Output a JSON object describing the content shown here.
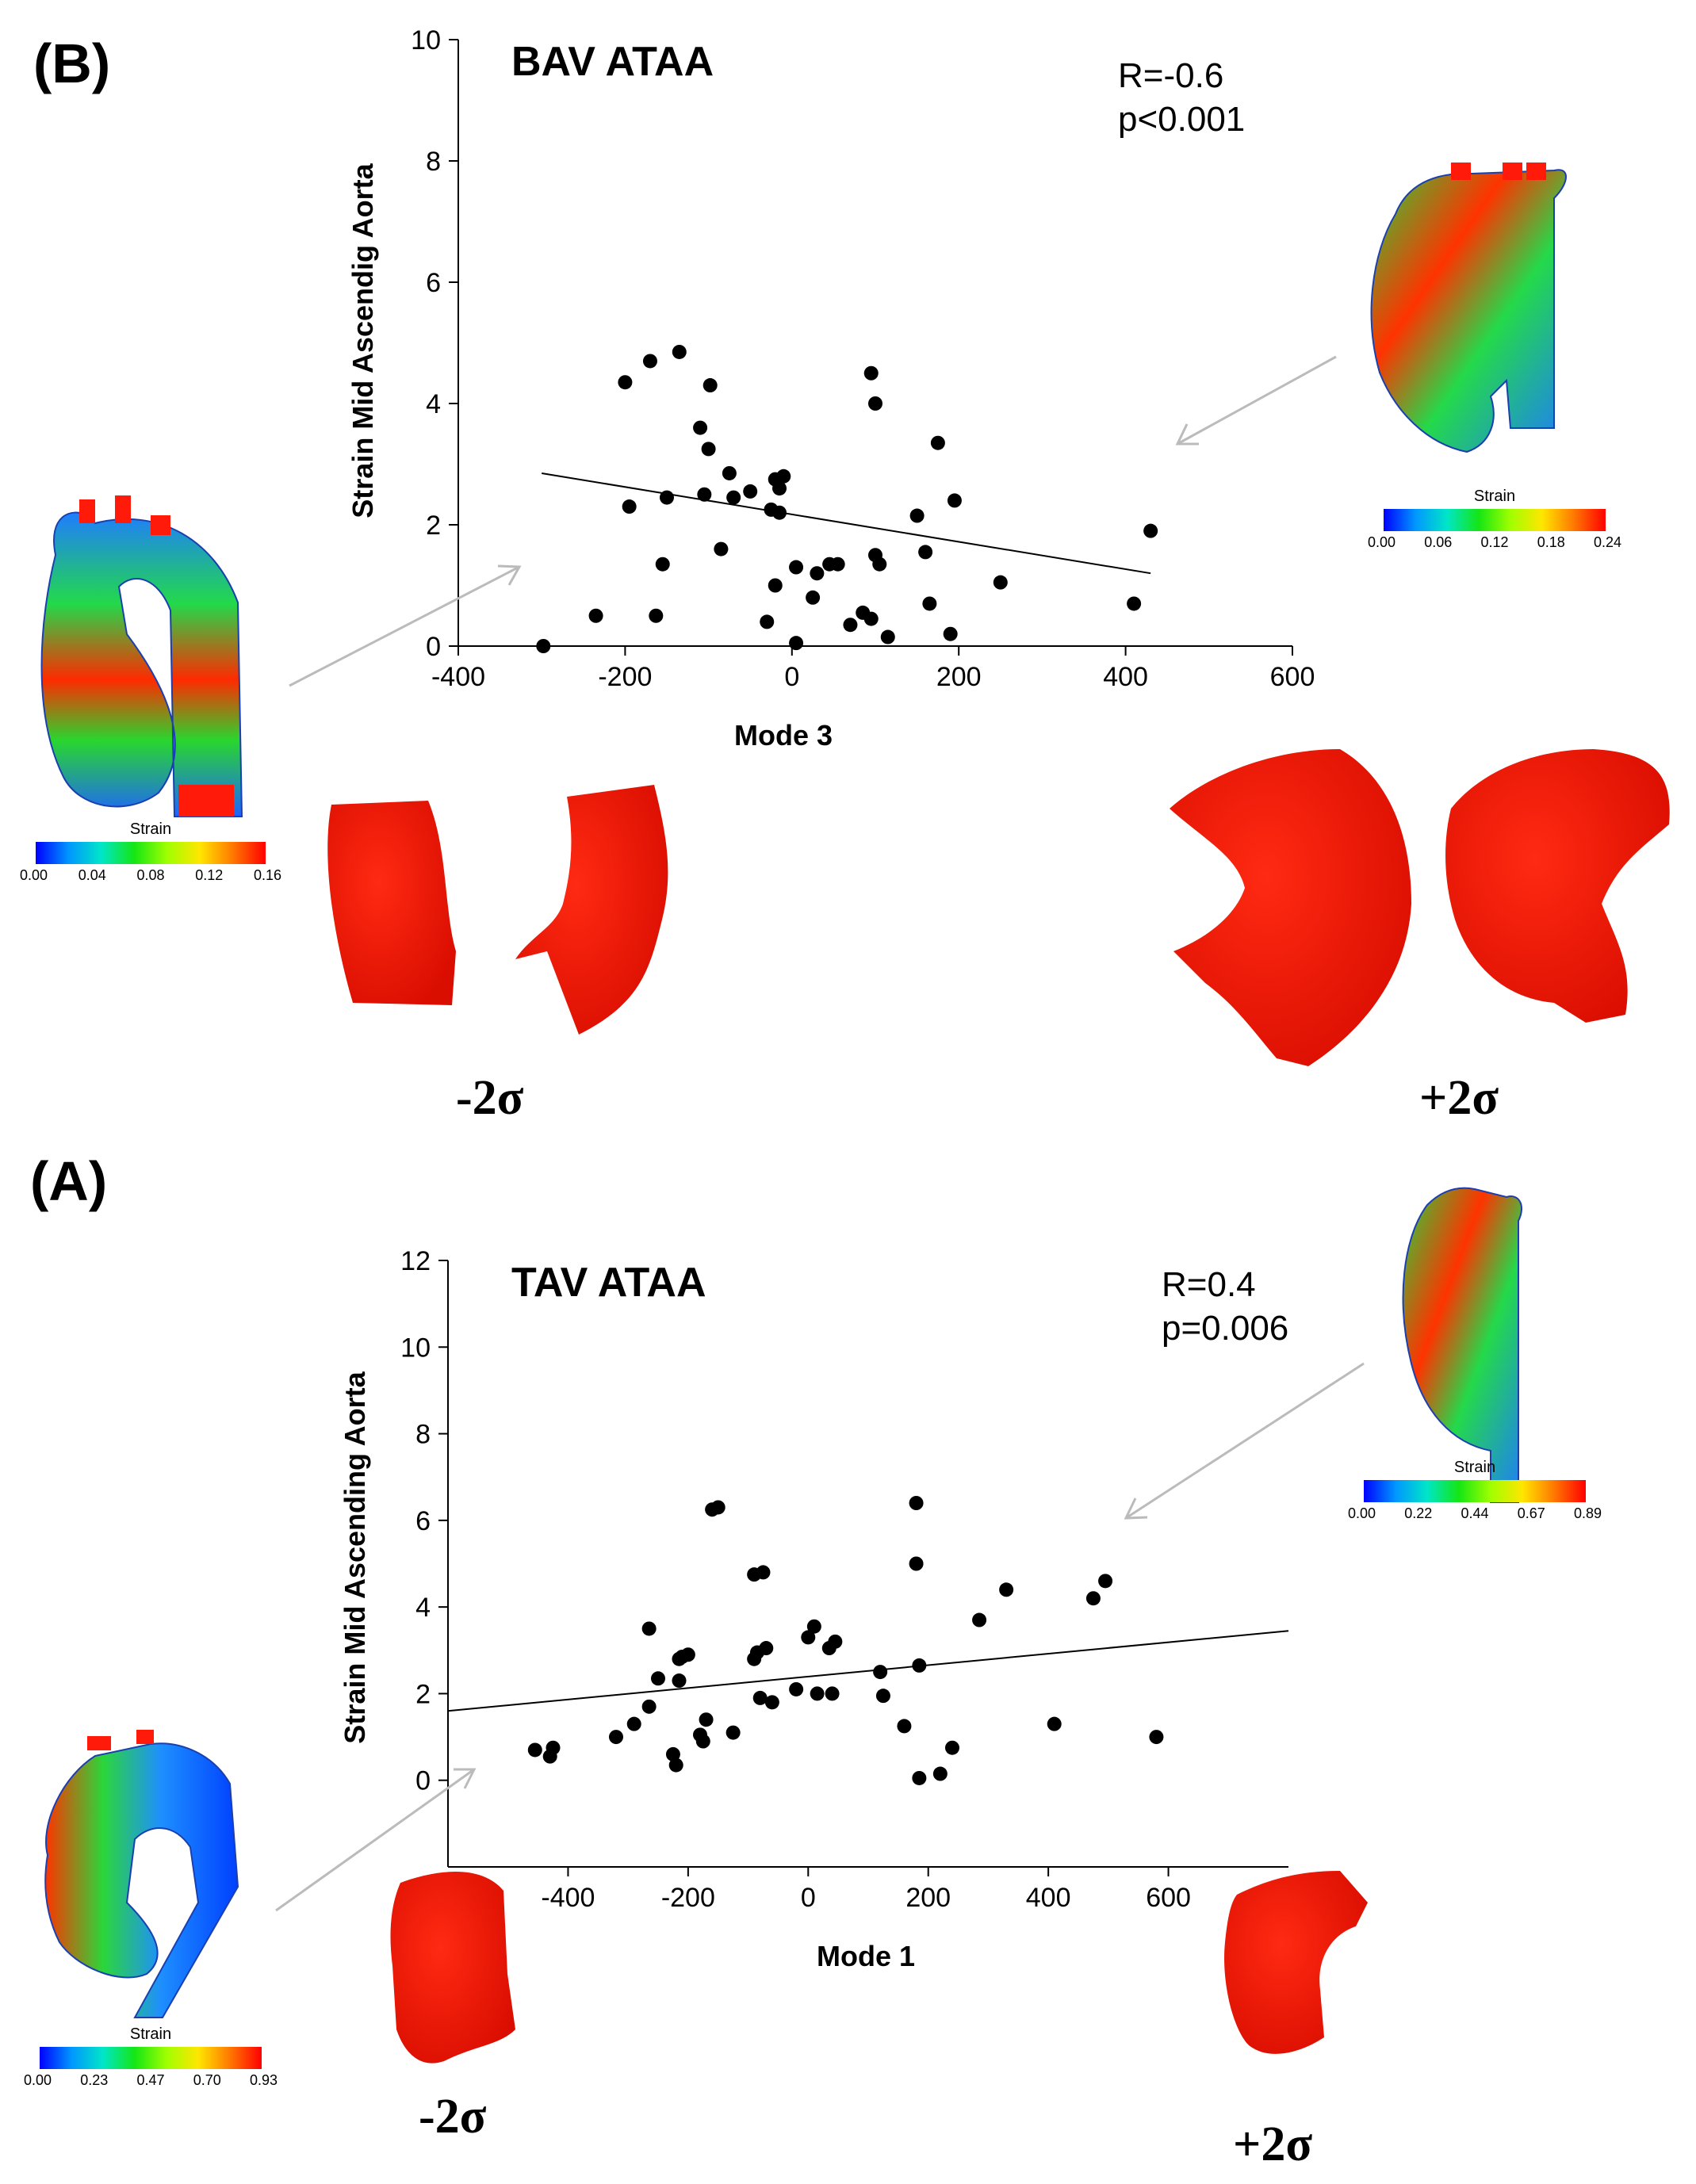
{
  "panels": {
    "b_label": "(B)",
    "a_label": "(A)"
  },
  "colors": {
    "aorta_red": "#ff1a0a",
    "points": "#000000",
    "arrow": "#bbbbbb",
    "colorbar": [
      "#0000ff",
      "#0096ff",
      "#00e6c8",
      "#14e614",
      "#a0ff00",
      "#ffe600",
      "#ff7800",
      "#ff0000"
    ]
  },
  "colorbars": {
    "b_left": {
      "title": "Strain",
      "ticks": [
        "0.00",
        "0.04",
        "0.08",
        "0.12",
        "0.16"
      ]
    },
    "b_right": {
      "title": "Strain",
      "ticks": [
        "0.00",
        "0.06",
        "0.12",
        "0.18",
        "0.24"
      ]
    },
    "a_right": {
      "title": "Strain",
      "ticks": [
        "0.00",
        "0.22",
        "0.44",
        "0.67",
        "0.89"
      ]
    },
    "a_left": {
      "title": "Strain",
      "ticks": [
        "0.00",
        "0.23",
        "0.47",
        "0.70",
        "0.93"
      ]
    }
  },
  "shapes": {
    "b_minus": "-2σ",
    "b_plus": "+2σ",
    "a_minus": "-2σ",
    "a_plus": "+2σ"
  },
  "chart_data": [
    {
      "type": "scatter",
      "title": "BAV ATAA",
      "annotation": [
        "R=-0.6",
        "p<0.001"
      ],
      "xlabel": "Mode 3",
      "ylabel": "Strain Mid Ascendig Aorta",
      "xlim": [
        -400,
        600
      ],
      "ylim": [
        0,
        10
      ],
      "xticks": [
        "-400",
        "-200",
        "0",
        "200",
        "400",
        "600"
      ],
      "yticks": [
        "0",
        "2",
        "4",
        "6",
        "8",
        "10"
      ],
      "regression": {
        "x": [
          -300,
          430
        ],
        "y": [
          2.85,
          1.2
        ]
      },
      "x": [
        -298,
        -235,
        -163,
        -155,
        -150,
        -170,
        -200,
        -195,
        -135,
        -110,
        -100,
        -98,
        -105,
        -75,
        -70,
        -85,
        -50,
        -30,
        -20,
        -15,
        -20,
        -15,
        -10,
        -25,
        5,
        5,
        25,
        30,
        45,
        55,
        70,
        85,
        95,
        95,
        100,
        100,
        105,
        115,
        150,
        160,
        165,
        175,
        190,
        195,
        250,
        410,
        430
      ],
      "y": [
        0.0,
        0.5,
        0.5,
        1.35,
        2.45,
        4.7,
        4.35,
        2.3,
        4.85,
        3.6,
        3.25,
        4.3,
        2.5,
        2.85,
        2.45,
        1.6,
        2.55,
        0.4,
        1.0,
        2.6,
        2.75,
        2.2,
        2.8,
        2.25,
        1.3,
        0.05,
        0.8,
        1.2,
        1.35,
        1.35,
        0.35,
        0.55,
        4.5,
        0.45,
        1.5,
        4.0,
        1.35,
        0.15,
        2.15,
        1.55,
        0.7,
        3.35,
        0.2,
        2.4,
        1.05,
        0.7,
        1.9
      ]
    },
    {
      "type": "scatter",
      "title": "TAV ATAA",
      "annotation": [
        "R=0.4",
        "p=0.006"
      ],
      "xlabel": "Mode 1",
      "ylabel": "Strain Mid Ascending Aorta",
      "xlim": [
        -600,
        800
      ],
      "ylim": [
        -2,
        12
      ],
      "xticks": [
        "-400",
        "-200",
        "0",
        "200",
        "400",
        "600"
      ],
      "yticks": [
        "0",
        "2",
        "4",
        "6",
        "8",
        "10",
        "12"
      ],
      "regression": {
        "x": [
          -600,
          800
        ],
        "y": [
          1.6,
          3.45
        ]
      },
      "x": [
        -455,
        -430,
        -425,
        -320,
        -290,
        -265,
        -265,
        -250,
        -225,
        -220,
        -215,
        -215,
        -210,
        -200,
        -180,
        -175,
        -170,
        -150,
        -160,
        -125,
        -90,
        -90,
        -80,
        -85,
        -70,
        -75,
        -60,
        -20,
        0,
        10,
        15,
        35,
        40,
        45,
        120,
        125,
        160,
        180,
        180,
        185,
        185,
        220,
        240,
        285,
        330,
        410,
        475,
        495,
        580
      ],
      "y": [
        0.7,
        0.55,
        0.75,
        1.0,
        1.3,
        3.5,
        1.7,
        2.35,
        0.6,
        0.35,
        2.3,
        2.8,
        2.85,
        2.9,
        1.05,
        0.9,
        1.4,
        6.3,
        6.25,
        1.1,
        2.8,
        4.75,
        1.9,
        2.95,
        3.05,
        4.8,
        1.8,
        2.1,
        3.3,
        3.55,
        2.0,
        3.05,
        2.0,
        3.2,
        2.5,
        1.95,
        1.25,
        6.4,
        5.0,
        0.05,
        2.65,
        0.15,
        0.75,
        3.7,
        4.4,
        1.3,
        4.2,
        4.6,
        1.0
      ]
    }
  ]
}
